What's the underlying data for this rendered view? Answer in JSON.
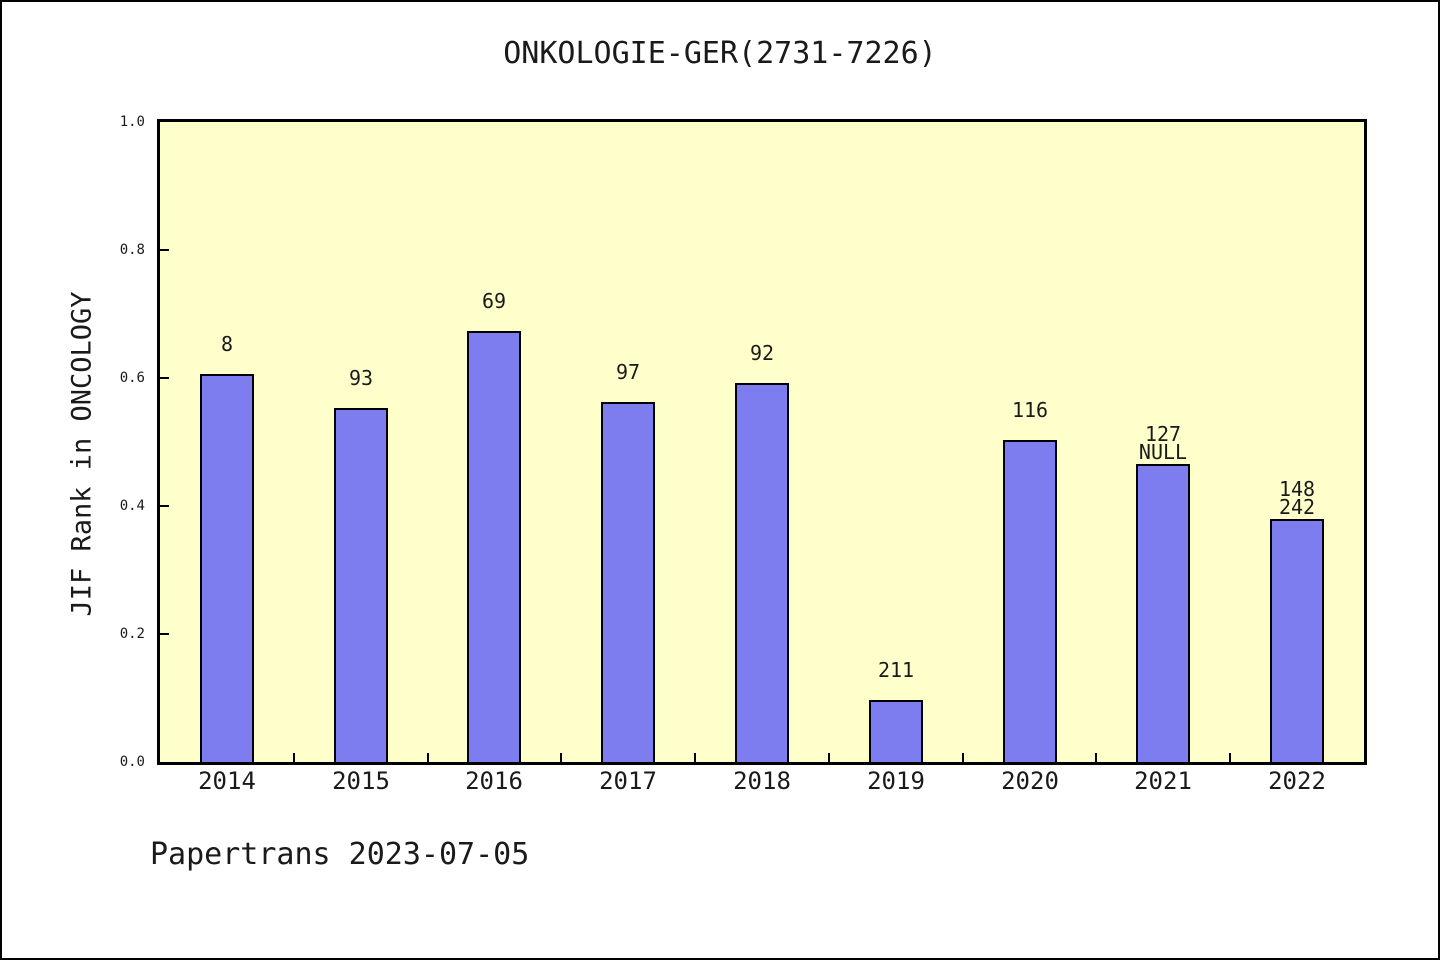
{
  "window": {
    "background": "#ffffff",
    "border_color": "#000000"
  },
  "chart_data": {
    "type": "bar",
    "title": "ONKOLOGIE-GER(2731-7226)",
    "ylabel": "JIF Rank in ONCOLOGY",
    "xlabel": "",
    "ylim": [
      0.0,
      1.0
    ],
    "ytick_values": [
      1.0,
      0.8,
      0.6,
      0.4,
      0.2,
      0.0
    ],
    "ytick_labels": [
      "1.0",
      "0.8",
      "0.6",
      "0.4",
      "0.2",
      "0.0"
    ],
    "grid": false,
    "legend": false,
    "categories": [
      "2014",
      "2015",
      "2016",
      "2017",
      "2018",
      "2019",
      "2020",
      "2021",
      "2022"
    ],
    "values": [
      0.607,
      0.553,
      0.673,
      0.562,
      0.592,
      0.097,
      0.503,
      0.466,
      0.38
    ],
    "bar_labels": [
      [
        "8"
      ],
      [
        "93"
      ],
      [
        "69"
      ],
      [
        "97"
      ],
      [
        "92"
      ],
      [
        "211"
      ],
      [
        "116"
      ],
      [
        "127",
        "NULL"
      ],
      [
        "148",
        "242"
      ]
    ],
    "bar_color": "#7D7DF0",
    "bar_border_color": "#000000",
    "plot_background": "#FFFFCC",
    "axis_color": "#000000"
  },
  "footer": {
    "credit": "Papertrans 2023-07-05"
  }
}
